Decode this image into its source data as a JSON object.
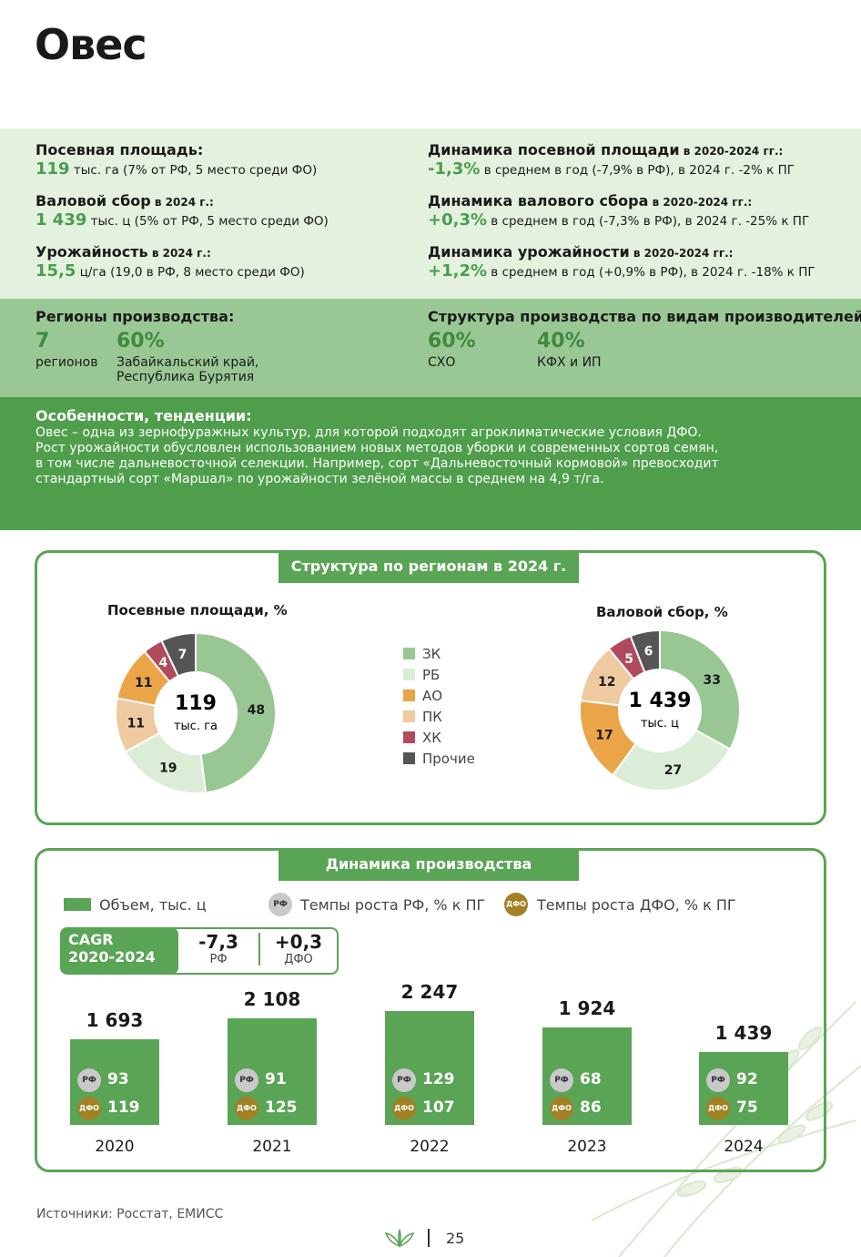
{
  "title": "Овес",
  "kpis_left": [
    {
      "label": "Посевная площадь:",
      "label_small": "",
      "value": "119",
      "text": " тыс. га (7% от РФ, 5 место среди ФО)"
    },
    {
      "label": "Валовой сбор",
      "label_small": " в 2024 г.:",
      "value": "1 439",
      "text": " тыс. ц (5% от РФ, 5 место среди ФО)"
    },
    {
      "label": "Урожайность",
      "label_small": " в 2024 г.:",
      "value": "15,5",
      "text": " ц/га (19,0 в РФ, 8 место среди ФО)"
    }
  ],
  "kpis_right": [
    {
      "label": "Динамика посевной площади",
      "label_small": " в 2020-2024 гг.:",
      "value": "-1,3%",
      "text": " в среднем в год (-7,9% в РФ), в 2024 г. -2% к ПГ"
    },
    {
      "label": "Динамика валового сбора",
      "label_small": " в 2020-2024 гг.:",
      "value": "+0,3%",
      "text": " в среднем в год (-7,3% в РФ), в 2024 г. -25% к ПГ"
    },
    {
      "label": "Динамика урожайности",
      "label_small": " в 2020-2024 гг.:",
      "value": "+1,2%",
      "text": " в среднем в год (+0,9% в РФ), в 2024 г. -18% к ПГ"
    }
  ],
  "regions": {
    "heading": "Регионы производства:",
    "count": "7",
    "count_label": "регионов",
    "share": "60%",
    "share_label_1": "Забайкальский край,",
    "share_label_2": "Республика Бурятия"
  },
  "structure": {
    "heading": "Структура производства по видам производителей:",
    "a_value": "60%",
    "a_label": "СХО",
    "b_value": "40%",
    "b_label": "КФХ и ИП"
  },
  "features": {
    "heading": "Особенности, тенденции:",
    "lines": [
      "Овес – одна из зернофуражных культур, для которой подходят агроклиматические условия ДФО.",
      "Рост урожайности обусловлен использованием новых методов уборки и современных сортов семян,",
      "в том числе дальневосточной селекции.  Например, сорт «Дальневосточный кормовой» превосходит",
      "стандартный сорт «Маршал» по урожайности зелёной массы в среднем на 4,9 т/га."
    ]
  },
  "panel1_title": "Структура по регионам в 2024 г.",
  "panel2_title": "Динамика производства",
  "colors": {
    "ZK": "#98c794",
    "RB": "#dcedd7",
    "AO": "#eba549",
    "PK": "#efc9a0",
    "HK": "#b24a5e",
    "Other": "#555555",
    "green": "#5aa456"
  },
  "legend": [
    {
      "label": "ЗК",
      "color": "#98c794"
    },
    {
      "label": "РБ",
      "color": "#dcedd7"
    },
    {
      "label": "АО",
      "color": "#eba549"
    },
    {
      "label": "ПК",
      "color": "#efc9a0"
    },
    {
      "label": "ХК",
      "color": "#b24a5e"
    },
    {
      "label": "Прочие",
      "color": "#555555"
    }
  ],
  "dyn_legend": {
    "volume": "Объем, тыс. ц",
    "rf_badge": "РФ",
    "rf_text": "Темпы роста РФ, % к ПГ",
    "dfo_badge": "ДФО",
    "dfo_text": "Темпы роста ДФО, % к ПГ"
  },
  "cagr": {
    "label_1": "CAGR",
    "label_2": "2020-2024",
    "rf_value": "-7,3",
    "rf_label": "РФ",
    "dfo_value": "+0,3",
    "dfo_label": "ДФО"
  },
  "source": "Источники: Росстат, ЕМИСС",
  "page_number": "25",
  "chart_data": [
    {
      "type": "pie",
      "title": "Посевные площади, %",
      "center_value": "119",
      "center_unit": "тыс. га",
      "categories": [
        "ЗК",
        "РБ",
        "ПК",
        "АО",
        "ХК",
        "Прочие"
      ],
      "values": [
        48,
        19,
        11,
        11,
        4,
        7
      ]
    },
    {
      "type": "pie",
      "title": "Валовой сбор, %",
      "center_value": "1 439",
      "center_unit": "тыс. ц",
      "categories": [
        "ЗК",
        "РБ",
        "АО",
        "ПК",
        "ХК",
        "Прочие"
      ],
      "values": [
        33,
        27,
        17,
        12,
        5,
        6
      ]
    },
    {
      "type": "bar",
      "categories": [
        "2020",
        "2021",
        "2022",
        "2023",
        "2024"
      ],
      "series": [
        {
          "name": "Объем, тыс. ц",
          "values": [
            1693,
            2108,
            2247,
            1924,
            1439
          ],
          "labels": [
            "1 693",
            "2 108",
            "2 247",
            "1 924",
            "1 439"
          ]
        },
        {
          "name": "Темпы роста РФ, % к ПГ",
          "values": [
            93,
            91,
            129,
            68,
            92
          ]
        },
        {
          "name": "Темпы роста ДФО, % к ПГ",
          "values": [
            119,
            125,
            107,
            86,
            75
          ]
        }
      ]
    }
  ]
}
